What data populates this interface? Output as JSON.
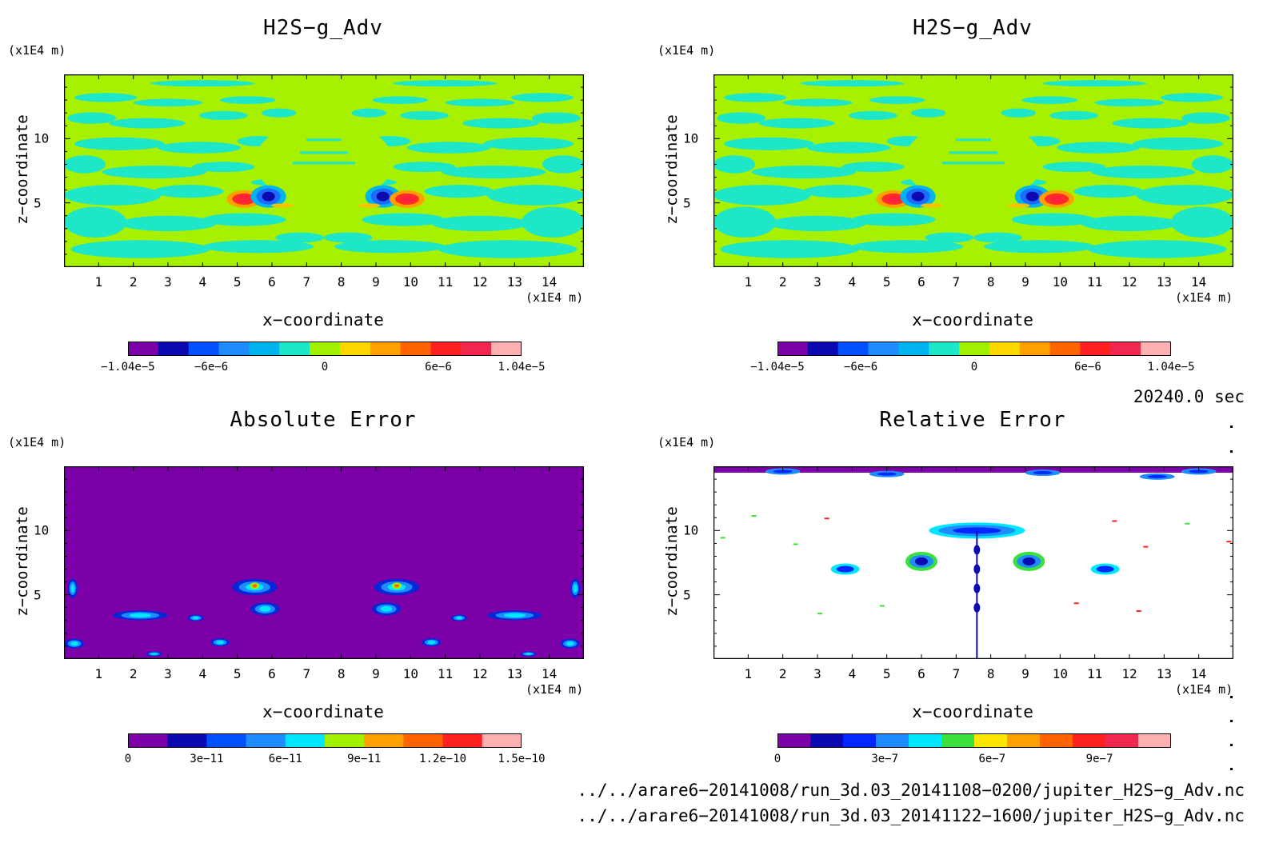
{
  "panels": [
    {
      "title": "H2S−g_Adv",
      "y_unit": "(x1E4 m)",
      "x_unit": "(x1E4 m)",
      "xlabel": "x−coordinate",
      "ylabel": "z−coordinate",
      "colorbar_ticks": [
        "−1.04e−5",
        "−6e−6",
        "0",
        "6e−6",
        "1.04e−5"
      ],
      "colorbar_colors": [
        "#7b00a8",
        "#0a0ab0",
        "#0050ff",
        "#1e8cff",
        "#00b4f0",
        "#1ee6c8",
        "#a0f000",
        "#ffd700",
        "#ffa000",
        "#ff6400",
        "#ff2020",
        "#f02850",
        "#ffb0b0"
      ]
    },
    {
      "title": "H2S−g_Adv",
      "y_unit": "(x1E4 m)",
      "x_unit": "(x1E4 m)",
      "xlabel": "x−coordinate",
      "ylabel": "z−coordinate",
      "colorbar_ticks": [
        "−1.04e−5",
        "−6e−6",
        "0",
        "6e−6",
        "1.04e−5"
      ],
      "colorbar_colors": [
        "#7b00a8",
        "#0a0ab0",
        "#0050ff",
        "#1e8cff",
        "#00b4f0",
        "#1ee6c8",
        "#a0f000",
        "#ffd700",
        "#ffa000",
        "#ff6400",
        "#ff2020",
        "#f02850",
        "#ffb0b0"
      ]
    },
    {
      "title": "Absolute Error",
      "y_unit": "(x1E4 m)",
      "x_unit": "(x1E4 m)",
      "xlabel": "x−coordinate",
      "ylabel": "z−coordinate",
      "colorbar_ticks": [
        "0",
        "3e−11",
        "6e−11",
        "9e−11",
        "1.2e−10",
        "1.5e−10"
      ],
      "colorbar_colors": [
        "#7b00a8",
        "#0a0ab0",
        "#0050ff",
        "#1e8cff",
        "#00e6ff",
        "#a0f000",
        "#ffa000",
        "#ff6400",
        "#ff2020",
        "#ffb0b0"
      ]
    },
    {
      "title": "Relative Error",
      "y_unit": "(x1E4 m)",
      "x_unit": "(x1E4 m)",
      "xlabel": "x−coordinate",
      "ylabel": "z−coordinate",
      "colorbar_ticks": [
        "0",
        "3e−7",
        "6e−7",
        "9e−7"
      ],
      "colorbar_colors": [
        "#7b00a8",
        "#0a0ab0",
        "#0028ff",
        "#1e8cff",
        "#00e6ff",
        "#3ce03c",
        "#ffe600",
        "#ffa000",
        "#ff6400",
        "#ff2020",
        "#f02850",
        "#ffb0b0"
      ]
    }
  ],
  "chart_data": [
    {
      "type": "heatmap",
      "title": "H2S−g_Adv",
      "xlabel": "x−coordinate",
      "ylabel": "z−coordinate",
      "x_unit": "(x1E4 m)",
      "y_unit": "(x1E4 m)",
      "xlim": [
        0,
        15
      ],
      "ylim": [
        0,
        15
      ],
      "xticks": [
        1,
        2,
        3,
        4,
        5,
        6,
        7,
        8,
        9,
        10,
        11,
        12,
        13,
        14
      ],
      "yticks": [
        5,
        10
      ],
      "colorbar": {
        "min": -1.04e-05,
        "max": 1.04e-05,
        "tick_labels": [
          "−1.04e−5",
          "−6e−6",
          "0",
          "6e−6",
          "1.04e−5"
        ]
      },
      "features": [
        {
          "x": 5.2,
          "z": 5.3,
          "sign": "positive",
          "peak": 1e-05
        },
        {
          "x": 5.9,
          "z": 5.5,
          "sign": "negative",
          "peak": -1e-05
        },
        {
          "x": 9.2,
          "z": 5.5,
          "sign": "negative",
          "peak": -1e-05
        },
        {
          "x": 9.9,
          "z": 5.3,
          "sign": "positive",
          "peak": 1e-05
        }
      ]
    },
    {
      "type": "heatmap",
      "title": "H2S−g_Adv",
      "xlabel": "x−coordinate",
      "ylabel": "z−coordinate",
      "x_unit": "(x1E4 m)",
      "y_unit": "(x1E4 m)",
      "xlim": [
        0,
        15
      ],
      "ylim": [
        0,
        15
      ],
      "xticks": [
        1,
        2,
        3,
        4,
        5,
        6,
        7,
        8,
        9,
        10,
        11,
        12,
        13,
        14
      ],
      "yticks": [
        5,
        10
      ],
      "colorbar": {
        "min": -1.04e-05,
        "max": 1.04e-05,
        "tick_labels": [
          "−1.04e−5",
          "−6e−6",
          "0",
          "6e−6",
          "1.04e−5"
        ]
      },
      "features": [
        {
          "x": 5.2,
          "z": 5.3,
          "sign": "positive",
          "peak": 1e-05
        },
        {
          "x": 5.9,
          "z": 5.5,
          "sign": "negative",
          "peak": -1e-05
        },
        {
          "x": 9.2,
          "z": 5.5,
          "sign": "negative",
          "peak": -1e-05
        },
        {
          "x": 9.9,
          "z": 5.3,
          "sign": "positive",
          "peak": 1e-05
        }
      ]
    },
    {
      "type": "heatmap",
      "title": "Absolute Error",
      "xlabel": "x−coordinate",
      "ylabel": "z−coordinate",
      "x_unit": "(x1E4 m)",
      "y_unit": "(x1E4 m)",
      "xlim": [
        0,
        15
      ],
      "ylim": [
        0,
        15
      ],
      "xticks": [
        1,
        2,
        3,
        4,
        5,
        6,
        7,
        8,
        9,
        10,
        11,
        12,
        13,
        14
      ],
      "yticks": [
        5,
        10
      ],
      "colorbar": {
        "min": 0,
        "max": 1.5e-10,
        "tick_labels": [
          "0",
          "3e−11",
          "6e−11",
          "9e−11",
          "1.2e−10",
          "1.5e−10"
        ]
      },
      "features": [
        {
          "x": 5.5,
          "z": 5.6,
          "peak": 1e-10
        },
        {
          "x": 9.6,
          "z": 5.6,
          "peak": 1e-10
        },
        {
          "x": 2.2,
          "z": 3.4,
          "peak": 6e-11
        },
        {
          "x": 13.4,
          "z": 3.4,
          "peak": 6e-11
        },
        {
          "x": 0.3,
          "z": 1.0,
          "peak": 4e-11
        },
        {
          "x": 14.6,
          "z": 1.0,
          "peak": 4e-11
        }
      ]
    },
    {
      "type": "heatmap",
      "title": "Relative Error",
      "xlabel": "x−coordinate",
      "ylabel": "z−coordinate",
      "x_unit": "(x1E4 m)",
      "y_unit": "(x1E4 m)",
      "xlim": [
        0,
        15
      ],
      "ylim": [
        0,
        15
      ],
      "xticks": [
        1,
        2,
        3,
        4,
        5,
        6,
        7,
        8,
        9,
        10,
        11,
        12,
        13,
        14
      ],
      "yticks": [
        5,
        10
      ],
      "colorbar": {
        "min": 0,
        "max": 1.1e-06,
        "tick_labels": [
          "0",
          "3e−7",
          "6e−7",
          "9e−7"
        ]
      },
      "features": [
        {
          "x": 7.6,
          "z": 10.0,
          "peak": 1e-06
        },
        {
          "x": 6.0,
          "z": 7.6,
          "peak": 8e-07
        },
        {
          "x": 9.1,
          "z": 7.6,
          "peak": 8e-07
        },
        {
          "x": 3.8,
          "z": 7.0,
          "peak": 7e-07
        },
        {
          "x": 11.3,
          "z": 7.0,
          "peak": 7e-07
        }
      ]
    }
  ],
  "footer": {
    "time": "20240.0 sec",
    "file1": "../../arare6−20141008/run_3d.03_20141108−0200/jupiter_H2S−g_Adv.nc",
    "file2": "../../arare6−20141008/run_3d.03_20141122−1600/jupiter_H2S−g_Adv.nc"
  }
}
